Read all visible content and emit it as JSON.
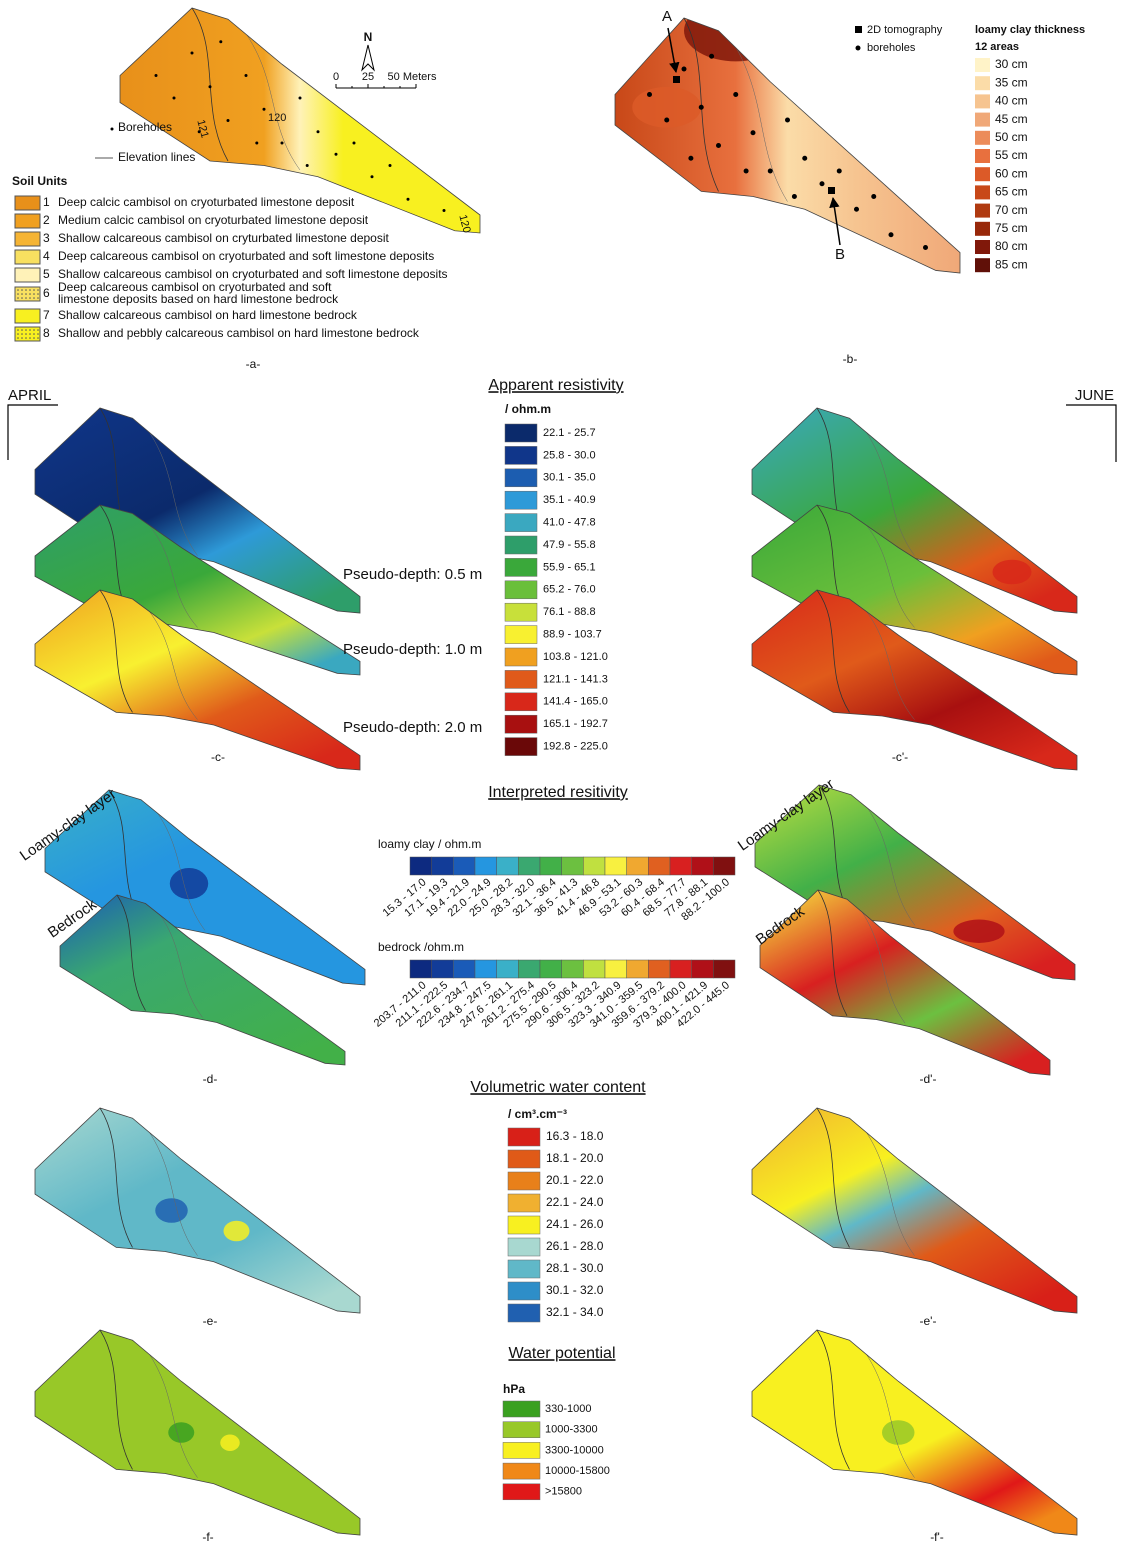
{
  "panel_a": {
    "caption": "-a-",
    "north": "N",
    "scale": [
      "0",
      "25",
      "50 Meters"
    ],
    "contours": [
      "121",
      "120",
      "120"
    ],
    "legend": [
      "Boreholes",
      "Elevation lines"
    ],
    "units_title": "Soil Units",
    "units": [
      {
        "number": 1,
        "lines": [
          "Deep calcic cambisol on cryoturbated limestone deposit"
        ],
        "color": "#e8901a"
      },
      {
        "number": 2,
        "lines": [
          "Medium calcic cambisol on cryoturbated limestone deposit"
        ],
        "color": "#f0a020"
      },
      {
        "number": 3,
        "lines": [
          "Shallow calcareous cambisol on cryturbated limestone deposit"
        ],
        "color": "#f5b434"
      },
      {
        "number": 4,
        "lines": [
          "Deep calcareous cambisol on cryoturbated and soft limestone deposits"
        ],
        "color": "#f8e060"
      },
      {
        "number": 5,
        "lines": [
          "Shallow calcareous cambisol on cryoturbated and soft limestone deposits"
        ],
        "color": "#fff2b8"
      },
      {
        "number": 6,
        "lines": [
          "Deep calcareous cambisol on cryoturbated and soft",
          "limestone deposits based on hard limestone bedrock"
        ],
        "color": "#f8e060"
      },
      {
        "number": 7,
        "lines": [
          "Shallow calcareous cambisol on hard limestone bedrock"
        ],
        "color": "#f8f020"
      },
      {
        "number": 8,
        "lines": [
          "Shallow and pebbly calcareous cambisol on hard limestone bedrock"
        ],
        "color": "#f8f020"
      }
    ]
  },
  "panel_b": {
    "caption": "-b-",
    "points": [
      "A",
      "B"
    ],
    "legend": [
      "2D tomography",
      "boreholes"
    ],
    "legend_title": "loamy clay thickness",
    "legend_subtitle": "12 areas",
    "classes": [
      {
        "label": "30 cm",
        "color": "#fff3c8"
      },
      {
        "label": "35 cm",
        "color": "#fbdca8"
      },
      {
        "label": "40 cm",
        "color": "#f6c490"
      },
      {
        "label": "45 cm",
        "color": "#f0a878"
      },
      {
        "label": "50 cm",
        "color": "#ec8c5a"
      },
      {
        "label": "55 cm",
        "color": "#e8703e"
      },
      {
        "label": "60 cm",
        "color": "#dc5a28"
      },
      {
        "label": "65 cm",
        "color": "#c84818"
      },
      {
        "label": "70 cm",
        "color": "#b03a10"
      },
      {
        "label": "75 cm",
        "color": "#98280a"
      },
      {
        "label": "80 cm",
        "color": "#80180a"
      },
      {
        "label": "85 cm",
        "color": "#601008"
      }
    ]
  },
  "months": [
    "APRIL",
    "JUNE"
  ],
  "apparent": {
    "title": "Apparent resistivity",
    "unit": "/ ohm.m",
    "captions": [
      "-c-",
      "-c'-"
    ],
    "depths": [
      "Pseudo-depth: 0.5 m",
      "Pseudo-depth: 1.0 m",
      "Pseudo-depth: 2.0 m"
    ],
    "classes": [
      {
        "label": "22.1 - 25.7",
        "color": "#0b2a6b"
      },
      {
        "label": "25.8 - 30.0",
        "color": "#10368a"
      },
      {
        "label": "30.1 - 35.0",
        "color": "#1c5db0"
      },
      {
        "label": "35.1 - 40.9",
        "color": "#2e9ad8"
      },
      {
        "label": "41.0 - 47.8",
        "color": "#3aa8c0"
      },
      {
        "label": "47.9 - 55.8",
        "color": "#2e9e6a"
      },
      {
        "label": "55.9 - 65.1",
        "color": "#3aa83a"
      },
      {
        "label": "65.2 - 76.0",
        "color": "#6abf3a"
      },
      {
        "label": "76.1 - 88.8",
        "color": "#c8e03a"
      },
      {
        "label": "88.9 - 103.7",
        "color": "#f8f030"
      },
      {
        "label": "103.8 - 121.0",
        "color": "#f0a020"
      },
      {
        "label": "121.1 - 141.3",
        "color": "#e05a1a"
      },
      {
        "label": "141.4 - 165.0",
        "color": "#d8281a"
      },
      {
        "label": "165.1 - 192.7",
        "color": "#a81010"
      },
      {
        "label": "192.8 - 225.0",
        "color": "#6a0808"
      }
    ]
  },
  "interpreted": {
    "title": "Interpreted resitivity",
    "captions": [
      "-d-",
      "-d'-"
    ],
    "layers": [
      "Loamy-clay layer",
      "Bedrock"
    ],
    "colors": [
      "#0d2a80",
      "#123c98",
      "#1a5bb8",
      "#2596e0",
      "#3ab0c8",
      "#3aa870",
      "#42b048",
      "#6cc040",
      "#c0e040",
      "#f8f040",
      "#f0a830",
      "#e06020",
      "#d82020",
      "#b01018",
      "#801010"
    ],
    "bars": [
      {
        "title": "loamy clay / ohm.m",
        "labels": [
          "15.3 - 17.0",
          "17.1 - 19.3",
          "19.4 - 21.9",
          "22.0 - 24.9",
          "25.0 - 28.2",
          "28.3 - 32.0",
          "32.1 - 36.4",
          "36.5 - 41.3",
          "41.4 - 46.8",
          "46.9 - 53.1",
          "53.2 - 60.3",
          "60.4 - 68.4",
          "68.5 - 77.7",
          "77.8 - 88.1",
          "88.2 - 100.0"
        ]
      },
      {
        "title": "bedrock /ohm.m",
        "labels": [
          "203.7 - 211.0",
          "211.1 - 222.5",
          "222.6 - 234.7",
          "234.8 - 247.5",
          "247.6 - 261.1",
          "261.2 - 275.4",
          "275.5 - 290.5",
          "290.6 - 306.4",
          "306.5 - 323.2",
          "323.3 - 340.9",
          "341.0 - 359.5",
          "359.6 - 379.2",
          "379.3 - 400.0",
          "400.1 - 421.9",
          "422.0 - 445.0"
        ]
      }
    ]
  },
  "water_content": {
    "title": "Volumetric water content",
    "unit": "/ cm³.cm⁻³",
    "captions": [
      "-e-",
      "-e'-"
    ],
    "classes": [
      {
        "label": "16.3 - 18.0",
        "color": "#d82018"
      },
      {
        "label": "18.1 - 20.0",
        "color": "#e05a18"
      },
      {
        "label": "20.1 - 22.0",
        "color": "#e8801a"
      },
      {
        "label": "22.1 - 24.0",
        "color": "#f0b030"
      },
      {
        "label": "24.1 - 26.0",
        "color": "#f8f020"
      },
      {
        "label": "26.1 - 28.0",
        "color": "#a8d8d0"
      },
      {
        "label": "28.1 - 30.0",
        "color": "#60b8c8"
      },
      {
        "label": "30.1 - 32.0",
        "color": "#2e8ec8"
      },
      {
        "label": "32.1 - 34.0",
        "color": "#2060b0"
      }
    ]
  },
  "water_potential": {
    "title": "Water potential",
    "unit": "hPa",
    "captions": [
      "-f-",
      "-f'-"
    ],
    "classes": [
      {
        "label": "330-1000",
        "color": "#3aa020"
      },
      {
        "label": "1000-3300",
        "color": "#98c828"
      },
      {
        "label": "3300-10000",
        "color": "#f8f020"
      },
      {
        "label": "10000-15800",
        "color": "#f08818"
      },
      {
        "label": ">15800",
        "color": "#e01818"
      }
    ]
  }
}
